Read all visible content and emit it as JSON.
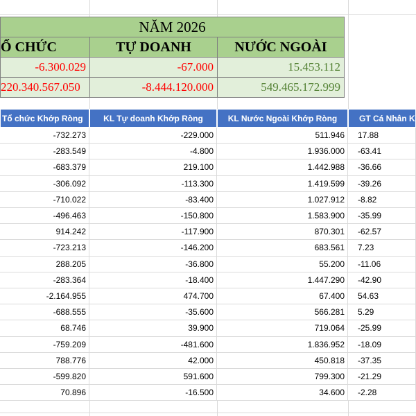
{
  "summary": {
    "title": "NĂM 2026",
    "headers": [
      "Ổ CHỨC",
      "TỰ DOANH",
      "NƯỚC NGOÀI"
    ],
    "row1": [
      "-6.300.029",
      "-67.000",
      "15.453.112"
    ],
    "row2": [
      "220.340.567.050",
      "-8.444.120.000",
      "549.465.172.999"
    ],
    "colors": {
      "header_bg": "#a9d08e",
      "value_bg": "#e2efda",
      "negative": "#ff0000",
      "positive": "#548235"
    }
  },
  "table": {
    "headers": [
      "Tổ chức Khớp Ròng",
      "KL Tự doanh Khớp Ròng",
      "KL Nước Ngoài Khớp Ròng",
      "GT Cá Nhân K"
    ],
    "header_bg": "#4472c4",
    "rows": [
      [
        "-732.273",
        "-229.000",
        "511.946",
        "17.88"
      ],
      [
        "-283.549",
        "-4.800",
        "1.936.000",
        "-63.41"
      ],
      [
        "-683.379",
        "219.100",
        "1.442.988",
        "-36.66"
      ],
      [
        "-306.092",
        "-113.300",
        "1.419.599",
        "-39.26"
      ],
      [
        "-710.022",
        "-83.400",
        "1.027.912",
        "-8.82"
      ],
      [
        "-496.463",
        "-150.800",
        "1.583.900",
        "-35.99"
      ],
      [
        "914.242",
        "-117.900",
        "870.301",
        "-62.57"
      ],
      [
        "-723.213",
        "-146.200",
        "683.561",
        "7.23"
      ],
      [
        "288.205",
        "-36.800",
        "55.200",
        "-11.06"
      ],
      [
        "-283.364",
        "-18.400",
        "1.447.290",
        "-42.90"
      ],
      [
        "-2.164.955",
        "474.700",
        "67.400",
        "54.63"
      ],
      [
        "-688.555",
        "-35.600",
        "566.281",
        "5.29"
      ],
      [
        "68.746",
        "39.900",
        "719.064",
        "-25.99"
      ],
      [
        "-759.209",
        "-481.600",
        "1.836.952",
        "-18.09"
      ],
      [
        "788.776",
        "42.000",
        "450.818",
        "-37.35"
      ],
      [
        "-599.820",
        "591.600",
        "799.300",
        "-21.29"
      ],
      [
        "70.896",
        "-16.500",
        "34.600",
        "-2.28"
      ]
    ]
  }
}
